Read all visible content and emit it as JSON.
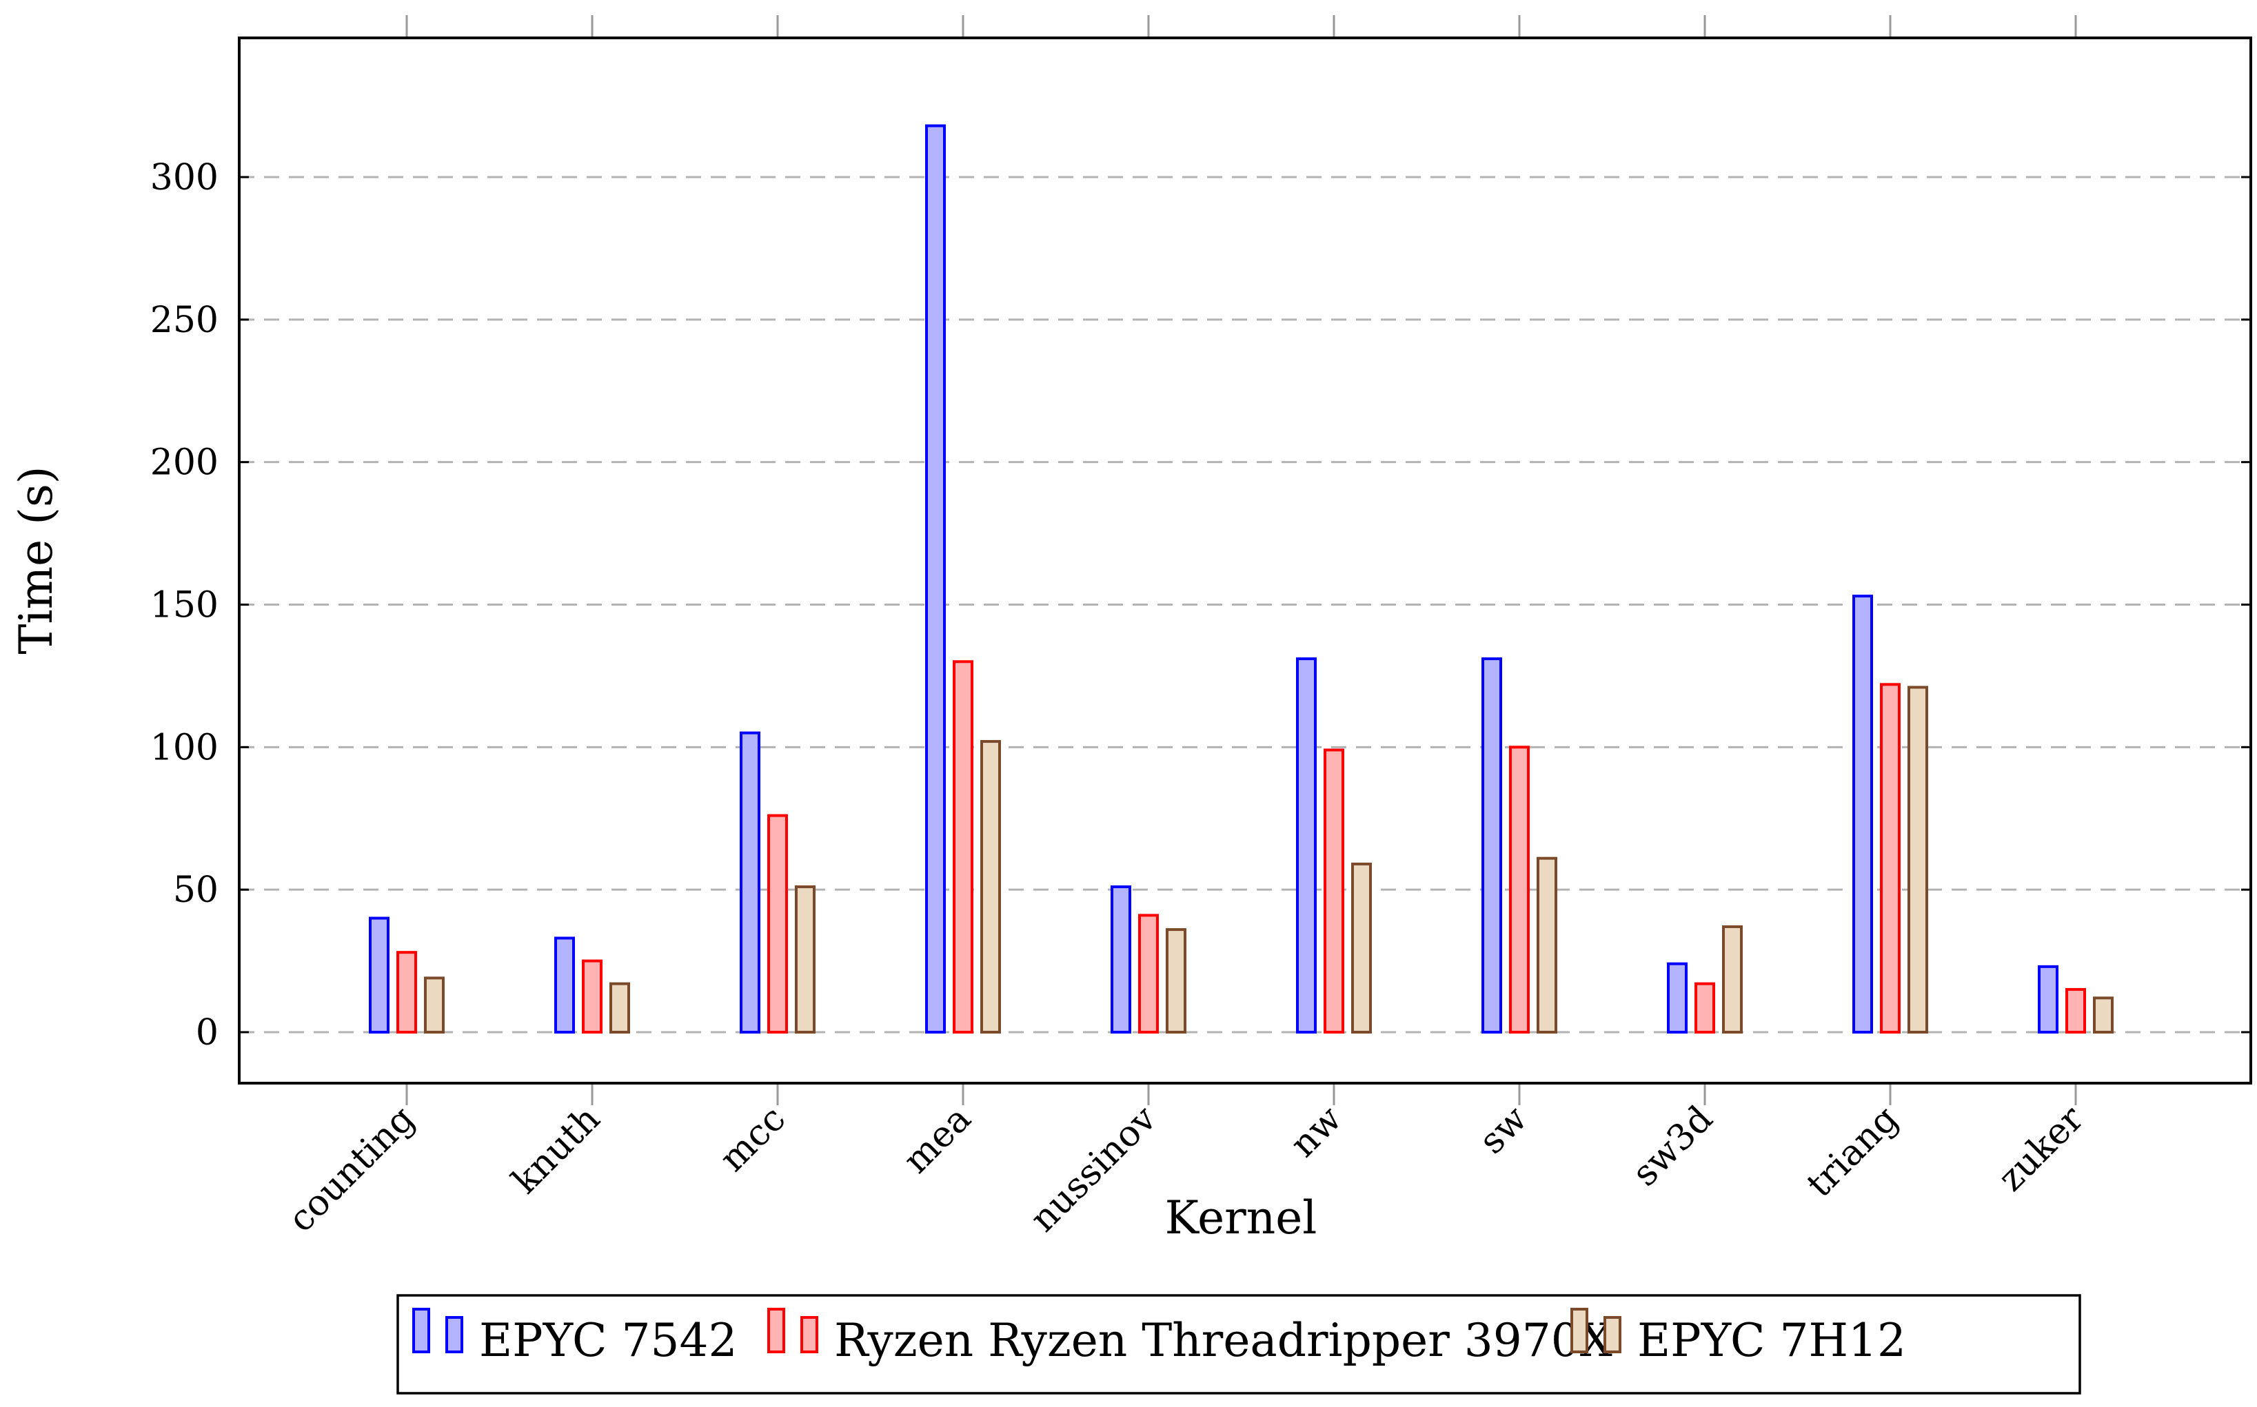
{
  "chart_data": {
    "type": "bar",
    "title": "",
    "xlabel": "Kernel",
    "ylabel": "Time (s)",
    "ylim": [
      -18,
      345
    ],
    "yticks": [
      0,
      50,
      100,
      150,
      200,
      250,
      300
    ],
    "grid": "horizontal-dashed",
    "legend_position": "bottom-center",
    "categories": [
      "counting",
      "knuth",
      "mcc",
      "mea",
      "nussinov",
      "nw",
      "sw",
      "sw3d",
      "triang",
      "zuker"
    ],
    "series": [
      {
        "name": "EPYC 7542",
        "stroke": "#0000ff",
        "fill": "#b3b3ff",
        "values": [
          40,
          33,
          105,
          318,
          51,
          131,
          131,
          24,
          153,
          23
        ]
      },
      {
        "name": "Ryzen Ryzen Threadripper 3970X",
        "stroke": "#ff0000",
        "fill": "#ffb3b3",
        "values": [
          28,
          25,
          76,
          130,
          41,
          99,
          100,
          17,
          122,
          15
        ]
      },
      {
        "name": "EPYC 7H12",
        "stroke": "#7a4a2a",
        "fill": "#ecd9c2",
        "values": [
          19,
          17,
          51,
          102,
          36,
          59,
          61,
          37,
          121,
          12
        ]
      }
    ]
  }
}
